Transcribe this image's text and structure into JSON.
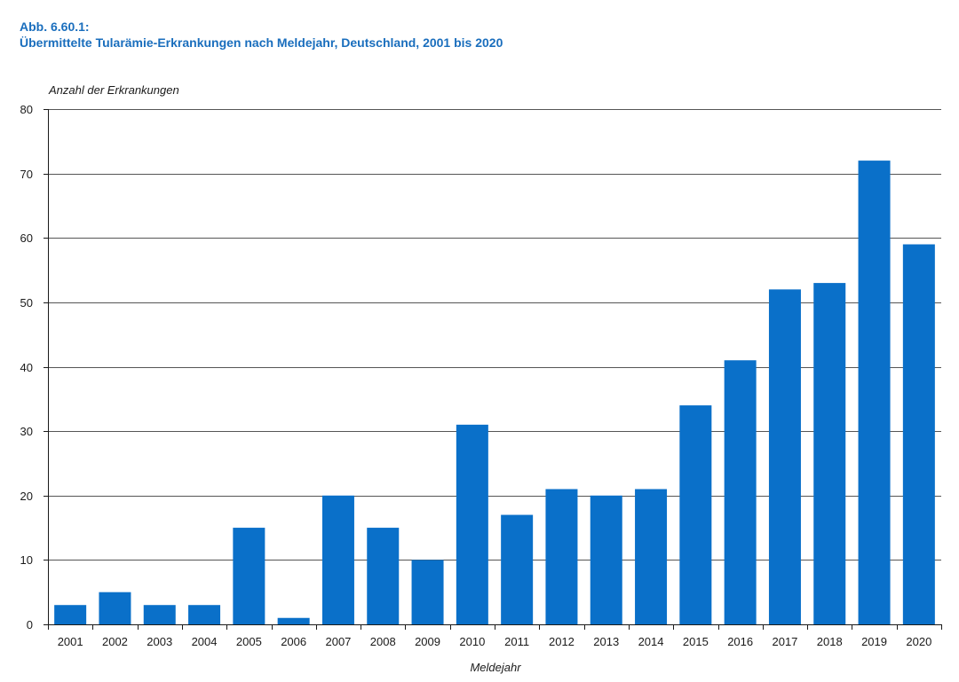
{
  "figure": {
    "number": "Abb. 6.60.1:",
    "title": "Übermittelte Tularämie-Erkrankungen nach Meldejahr, Deutschland, 2001 bis 2020"
  },
  "colors": {
    "bar": "#0a70c9",
    "title": "#1a6ebd",
    "grid": "#555555"
  },
  "chart_data": {
    "type": "bar",
    "title": "Übermittelte Tularämie-Erkrankungen nach Meldejahr, Deutschland, 2001 bis 2020",
    "xlabel": "Meldejahr",
    "ylabel": "Anzahl der Erkrankungen",
    "ylim": [
      0,
      80
    ],
    "yticks": [
      0,
      10,
      20,
      30,
      40,
      50,
      60,
      70,
      80
    ],
    "grid": true,
    "categories": [
      "2001",
      "2002",
      "2003",
      "2004",
      "2005",
      "2006",
      "2007",
      "2008",
      "2009",
      "2010",
      "2011",
      "2012",
      "2013",
      "2014",
      "2015",
      "2016",
      "2017",
      "2018",
      "2019",
      "2020"
    ],
    "values": [
      3,
      5,
      3,
      3,
      15,
      1,
      20,
      15,
      10,
      31,
      17,
      21,
      20,
      21,
      34,
      41,
      52,
      53,
      72,
      59
    ]
  }
}
